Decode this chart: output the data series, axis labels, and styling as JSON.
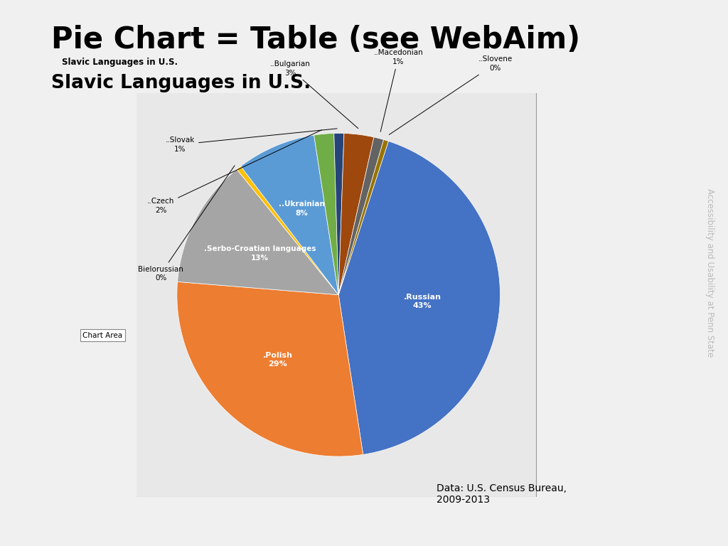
{
  "title_main": "Pie Chart = Table (see WebAim)",
  "title_sub": "Slavic Languages in U.S.",
  "chart_inner_title": "Slavic Languages in U.S.",
  "data_source": "Data: U.S. Census Bureau,\n2009-2013",
  "labels": [
    ".Russian",
    ".Polish",
    ".Serbo-Croatian languages",
    "..Bielorussian",
    "..Ukrainian",
    "..Czech",
    "..Slovak",
    "..Bulgarian",
    "..Macedonian",
    "..Slovene"
  ],
  "values": [
    43,
    29,
    13,
    0.5,
    8,
    2,
    1,
    3,
    1,
    0.5
  ],
  "colors": [
    "#4472C4",
    "#ED7D31",
    "#A5A5A5",
    "#FFC000",
    "#5B9BD5",
    "#70AD47",
    "#264478",
    "#9E480E",
    "#636363",
    "#997300"
  ],
  "background_color": "#E8E8E8",
  "startangle": 72
}
